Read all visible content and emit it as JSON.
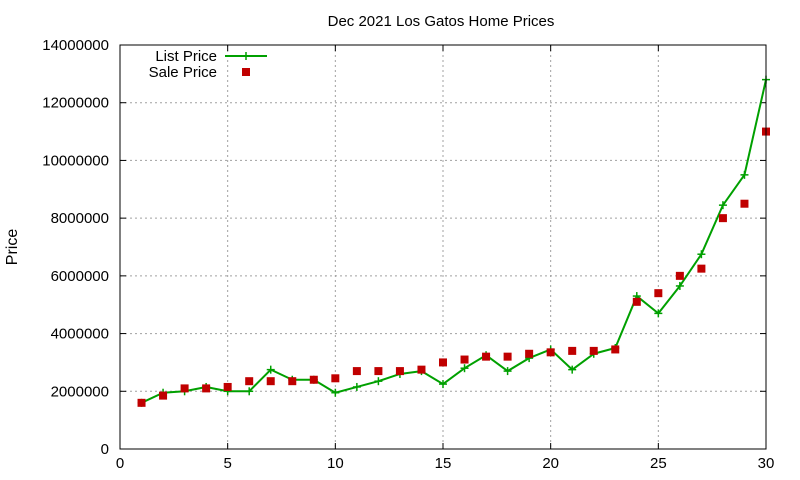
{
  "chart_data": {
    "type": "line",
    "title": "Dec 2021 Los Gatos Home Prices",
    "xlabel": "",
    "ylabel": "Price",
    "xlim": [
      0,
      30
    ],
    "ylim": [
      0,
      14000000
    ],
    "x_ticks": [
      0,
      5,
      10,
      15,
      20,
      25,
      30
    ],
    "y_ticks": [
      0,
      2000000,
      4000000,
      6000000,
      8000000,
      10000000,
      12000000,
      14000000
    ],
    "x_tick_labels": [
      "0",
      "5",
      "10",
      "15",
      "20",
      "25",
      "30"
    ],
    "y_tick_labels": [
      "0",
      "2000000",
      "4000000",
      "6000000",
      "8000000",
      "10000000",
      "12000000",
      "14000000"
    ],
    "grid": true,
    "legend_position": "top-left",
    "x": [
      1,
      2,
      3,
      4,
      5,
      6,
      7,
      8,
      9,
      10,
      11,
      12,
      13,
      14,
      15,
      16,
      17,
      18,
      19,
      20,
      21,
      22,
      23,
      24,
      25,
      26,
      27,
      28,
      29,
      30
    ],
    "series": [
      {
        "name": "List Price",
        "style": "line-points",
        "marker": "plus",
        "color": "#00a000",
        "values": [
          1600000,
          1950000,
          2000000,
          2150000,
          2000000,
          2000000,
          2750000,
          2400000,
          2400000,
          1950000,
          2150000,
          2350000,
          2600000,
          2700000,
          2250000,
          2800000,
          3250000,
          2700000,
          3150000,
          3450000,
          2750000,
          3300000,
          3500000,
          5300000,
          4700000,
          5650000,
          6750000,
          8450000,
          9500000,
          12800000
        ]
      },
      {
        "name": "Sale Price",
        "style": "points",
        "marker": "square",
        "color": "#c00000",
        "values": [
          1600000,
          1850000,
          2100000,
          2100000,
          2150000,
          2350000,
          2350000,
          2350000,
          2400000,
          2450000,
          2700000,
          2700000,
          2700000,
          2750000,
          3000000,
          3100000,
          3200000,
          3200000,
          3300000,
          3350000,
          3400000,
          3400000,
          3450000,
          5100000,
          5400000,
          6000000,
          6250000,
          8000000,
          8500000,
          11000000
        ]
      }
    ]
  }
}
